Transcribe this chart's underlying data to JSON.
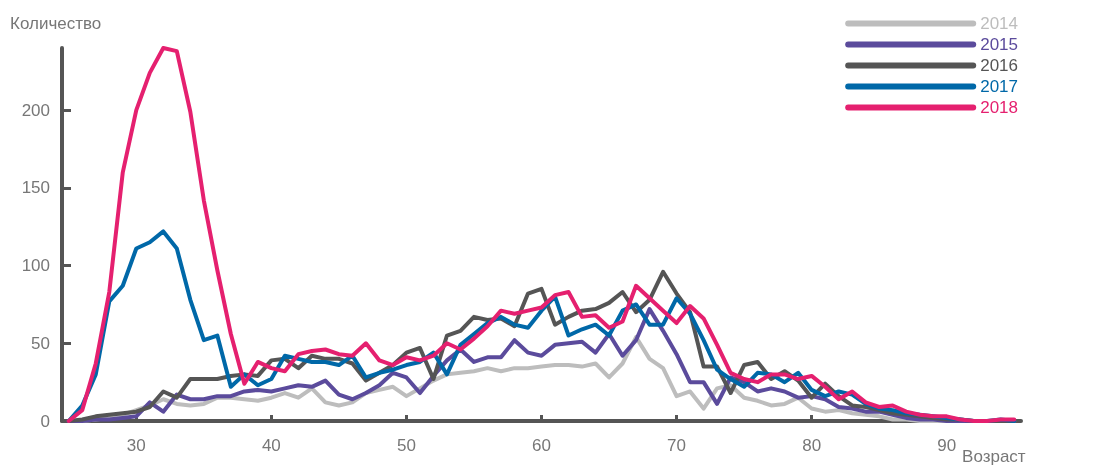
{
  "chart_data": {
    "type": "line",
    "xlabel": "Возраст",
    "ylabel": "Количество",
    "x": [
      25,
      26,
      27,
      28,
      29,
      30,
      31,
      32,
      33,
      34,
      35,
      36,
      37,
      38,
      39,
      40,
      41,
      42,
      43,
      44,
      45,
      46,
      47,
      48,
      49,
      50,
      51,
      52,
      53,
      54,
      55,
      56,
      57,
      58,
      59,
      60,
      61,
      62,
      63,
      64,
      65,
      66,
      67,
      68,
      69,
      70,
      71,
      72,
      73,
      74,
      75,
      76,
      77,
      78,
      79,
      80,
      81,
      82,
      83,
      84,
      85,
      86,
      87,
      88,
      89,
      90,
      91,
      92,
      93,
      94,
      95
    ],
    "xlim": [
      24.5,
      95.5
    ],
    "xticks": [
      30,
      40,
      50,
      60,
      70,
      80,
      90
    ],
    "ylim": [
      0,
      240
    ],
    "yticks": [
      0,
      50,
      100,
      150,
      200
    ],
    "grid": false,
    "legend": "top right",
    "marker": "none",
    "line_style": "solid",
    "series": [
      {
        "name": "2014",
        "color": "#bdbdbd",
        "values": [
          0,
          0,
          1,
          2,
          4,
          7,
          10,
          14,
          11,
          10,
          11,
          15,
          15,
          14,
          13,
          15,
          18,
          15,
          21,
          12,
          10,
          12,
          18,
          20,
          22,
          16,
          21,
          26,
          30,
          31,
          32,
          34,
          32,
          34,
          34,
          35,
          36,
          36,
          35,
          37,
          28,
          37,
          54,
          40,
          34,
          16,
          19,
          8,
          21,
          23,
          15,
          13,
          10,
          11,
          15,
          8,
          6,
          7,
          5,
          4,
          3,
          1,
          1,
          0,
          0,
          0,
          0,
          0,
          0,
          0,
          0
        ]
      },
      {
        "name": "2015",
        "color": "#5b4b9c",
        "values": [
          0,
          0,
          1,
          1,
          2,
          3,
          12,
          6,
          17,
          14,
          14,
          16,
          16,
          19,
          20,
          19,
          21,
          23,
          22,
          26,
          17,
          14,
          18,
          23,
          31,
          28,
          18,
          29,
          39,
          46,
          38,
          41,
          41,
          52,
          44,
          42,
          49,
          50,
          51,
          44,
          56,
          42,
          52,
          72,
          58,
          43,
          25,
          25,
          11,
          28,
          25,
          19,
          21,
          19,
          15,
          16,
          14,
          9,
          8,
          6,
          6,
          4,
          2,
          1,
          1,
          0,
          0,
          0,
          0,
          0,
          0
        ]
      },
      {
        "name": "2016",
        "color": "#555555",
        "values": [
          0,
          1,
          3,
          4,
          5,
          6,
          9,
          19,
          15,
          27,
          27,
          27,
          29,
          30,
          29,
          39,
          40,
          34,
          42,
          40,
          40,
          37,
          26,
          31,
          36,
          44,
          47,
          27,
          55,
          58,
          67,
          65,
          66,
          61,
          82,
          85,
          62,
          67,
          71,
          72,
          76,
          83,
          70,
          78,
          96,
          82,
          70,
          35,
          35,
          18,
          36,
          38,
          27,
          32,
          26,
          15,
          24,
          16,
          10,
          9,
          7,
          5,
          4,
          3,
          2,
          1,
          1,
          0,
          0,
          0,
          0
        ]
      },
      {
        "name": "2017",
        "color": "#0068a8",
        "values": [
          0,
          10,
          30,
          77,
          87,
          111,
          115,
          122,
          111,
          78,
          52,
          55,
          22,
          30,
          23,
          27,
          42,
          40,
          38,
          38,
          36,
          42,
          28,
          31,
          33,
          36,
          38,
          44,
          30,
          49,
          56,
          63,
          67,
          62,
          60,
          71,
          80,
          55,
          59,
          62,
          55,
          71,
          75,
          62,
          62,
          79,
          69,
          52,
          33,
          27,
          22,
          31,
          30,
          25,
          31,
          20,
          16,
          19,
          17,
          11,
          8,
          7,
          5,
          4,
          3,
          2,
          1,
          0,
          0,
          1,
          0
        ]
      },
      {
        "name": "2018",
        "color": "#e5206f",
        "values": [
          0,
          7,
          37,
          83,
          160,
          200,
          224,
          240,
          238,
          199,
          142,
          97,
          56,
          24,
          38,
          34,
          32,
          43,
          45,
          46,
          43,
          42,
          50,
          39,
          36,
          41,
          39,
          42,
          50,
          46,
          53,
          61,
          71,
          69,
          71,
          73,
          81,
          83,
          67,
          68,
          60,
          64,
          87,
          79,
          71,
          63,
          74,
          66,
          49,
          31,
          27,
          25,
          30,
          30,
          27,
          29,
          22,
          14,
          19,
          12,
          9,
          10,
          6,
          4,
          3,
          3,
          1,
          0,
          0,
          1,
          1
        ]
      }
    ]
  }
}
